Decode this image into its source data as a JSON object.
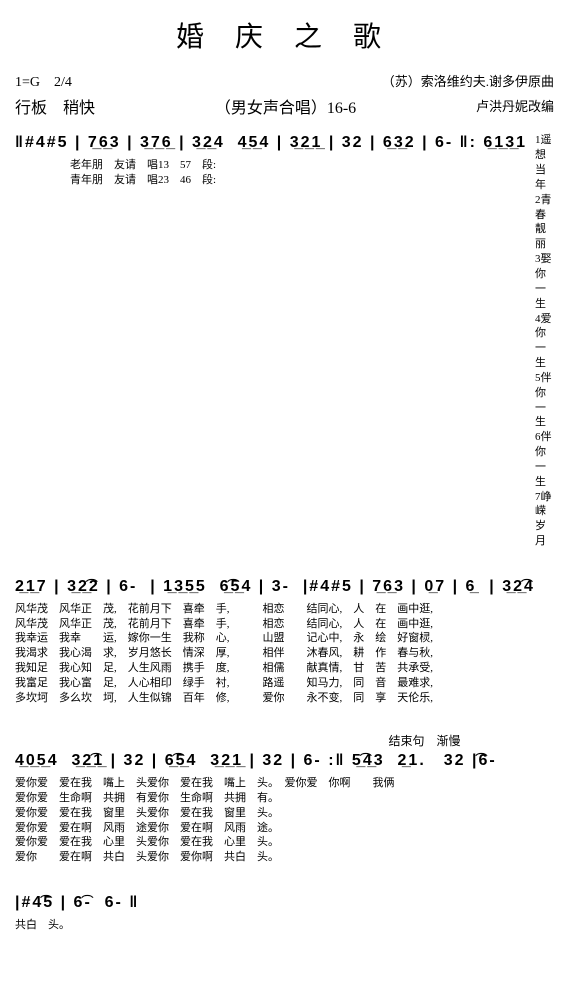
{
  "title": "婚 庆 之 歌",
  "key_time": "1=G　2/4",
  "composer": "（苏）索洛维约夫.谢多伊原曲",
  "tempo": "行板　稍快",
  "subtitle": "（男女声合唱）16-6",
  "arranger": "卢洪丹妮改编",
  "system1": {
    "notes": "‖#4#5 | 7̲6̲3 | 3̲7̲6̲ | 3̲2̲4  4̲5̲4 | 3̲2̲1̲ | 32 | 6̲3̲2 | 6- ‖: 6̲1̲3̲1",
    "lyrics_left": "                    老年朋　友请　唱13　57　段:\n                    青年朋　友请　唱23　46　段:",
    "side_items": [
      "1遥想当年",
      "2青春靓丽",
      "3娶你一生",
      "4爱你一生",
      "5伴你一生",
      "6伴你一生",
      "7峥嵘岁月"
    ]
  },
  "system2": {
    "notes": "2̲1̲7 | 3̲2̲͡2 | 6-  | 1̲3̲5̲5  6̲͡5̲4 | 3-  |#4#5 | 7̲6̲3 | 0̲7 | 6̲  | 3̲2̲͡4",
    "lyrics": "风华茂　风华正　茂,　花前月下　喜牵　手,　　　相恋　　结同心,　人　在　画中逛,\n风华茂　风华正　茂,　花前月下　喜牵　手,　　　相恋　　结同心,　人　在　画中逛,\n我幸运　我幸　　运,　嫁你一生　我称　心,　　　山盟　　记心中,　永　绘　好窗棂,\n我渴求　我心渴　求,　岁月悠长　情深　厚,　　　相伴　　沐春风,　耕　作　春与秋,\n我知足　我心知　足,　人生风雨　携手　度,　　　相儒　　献真情,　甘　苦　共承受,\n我富足　我心富　足,　人心相印　绿手　衬,　　　路遥　　知马力,　同　音　最难求,\n多坎坷　多么坎　坷,　人生似锦　百年　修,　　　爱你　　永不变,　同　享　天伦乐,"
  },
  "tempo_mark": "结束句　渐慢",
  "system3": {
    "notes": "4̲0̲5̲4  3̲2̲͡1̲ | 32 | 6̲͡5̲4  3̲2̲1̲ | 32 | 6- :‖ 5̲͡4̲3  2̲1.　32 |͡6-",
    "lyrics": "爱你爱　爱在我　嘴上　头爱你　爱在我　嘴上　头。　爱你爱　你啊　　我俩\n爱你爱　生命啊　共拥　有爱你　生命啊　共拥　有。\n爱你爱　爱在我　窗里　头爱你　爱在我　窗里　头。\n爱你爱　爱在啊　风雨　途爱你　爱在啊　风雨　途。\n爱你爱　爱在我　心里　头爱你　爱在我　心里　头。\n爱你　　爱在啊　共白　头爱你　爱你啊　共白　头。"
  },
  "system4": {
    "notes": "|#4͡5 | 6͡-  6- ‖",
    "lyrics": "共白　头。"
  }
}
